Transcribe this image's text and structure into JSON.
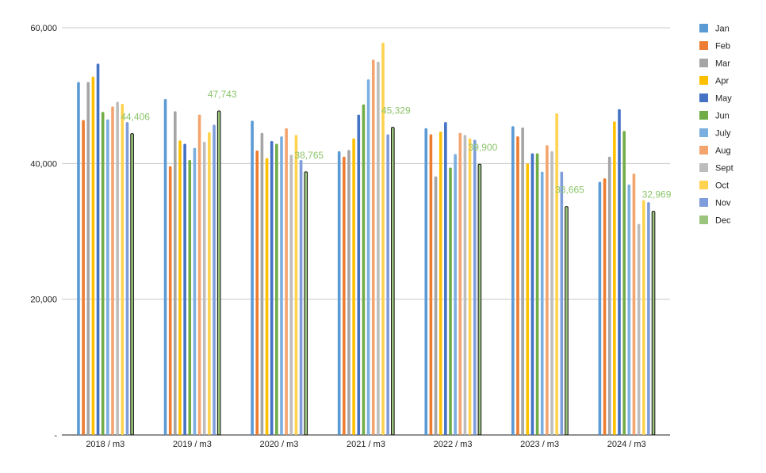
{
  "chart_data": {
    "type": "bar",
    "title": "",
    "xlabel": "",
    "ylabel": "",
    "ylim": [
      0,
      60000
    ],
    "yticks": [
      {
        "value": 0,
        "label": "-"
      },
      {
        "value": 20000,
        "label": "20,000"
      },
      {
        "value": 40000,
        "label": "40,000"
      },
      {
        "value": 60000,
        "label": "60,000"
      }
    ],
    "grid": true,
    "legend": "right",
    "categories": [
      "2018 / m3",
      "2019 /  m3",
      "2020 / m3",
      "2021 / m3",
      "2022 / m3",
      "2023 / m3",
      "2024 / m3"
    ],
    "series": [
      {
        "name": "Jan",
        "color": "#5B9BD5",
        "values": [
          52000,
          49500,
          46300,
          41800,
          45200,
          45500,
          37300
        ]
      },
      {
        "name": "Feb",
        "color": "#ED7D31",
        "values": [
          46400,
          39600,
          41900,
          41000,
          44300,
          44000,
          37800
        ]
      },
      {
        "name": "Mar",
        "color": "#A5A5A5",
        "values": [
          52000,
          47700,
          44500,
          42000,
          38100,
          45300,
          41000
        ]
      },
      {
        "name": "Apr",
        "color": "#FFC000",
        "values": [
          52800,
          43400,
          40800,
          43700,
          44700,
          40000,
          46200
        ]
      },
      {
        "name": "May",
        "color": "#4472C4",
        "values": [
          54700,
          42900,
          43300,
          47200,
          46100,
          41500,
          48000
        ]
      },
      {
        "name": "Jun",
        "color": "#70AD47",
        "values": [
          47600,
          40500,
          42900,
          48700,
          39400,
          41500,
          44800
        ]
      },
      {
        "name": "July",
        "color": "#7BAFE0",
        "values": [
          46500,
          42300,
          44000,
          52400,
          41400,
          38800,
          36900
        ]
      },
      {
        "name": "Aug",
        "color": "#F4A46E",
        "values": [
          48400,
          47200,
          45200,
          55300,
          44500,
          42700,
          38500
        ]
      },
      {
        "name": "Sept",
        "color": "#BDBDBD",
        "values": [
          49100,
          43200,
          41300,
          55000,
          44200,
          41800,
          31100
        ]
      },
      {
        "name": "Oct",
        "color": "#FFD34F",
        "values": [
          48800,
          44600,
          44200,
          57800,
          43700,
          47400,
          34600
        ]
      },
      {
        "name": "Nov",
        "color": "#7F9DDB",
        "values": [
          46100,
          45700,
          40500,
          44300,
          43500,
          38800,
          34300
        ]
      },
      {
        "name": "Dec",
        "color": "#9BC57E",
        "values": [
          44406,
          47743,
          38765,
          45329,
          39900,
          33665,
          32969
        ]
      }
    ],
    "data_labels": [
      {
        "series": "Dec",
        "category_index": 0,
        "text": "44,406"
      },
      {
        "series": "Dec",
        "category_index": 1,
        "text": "47,743"
      },
      {
        "series": "Dec",
        "category_index": 2,
        "text": "38,765"
      },
      {
        "series": "Dec",
        "category_index": 3,
        "text": "45,329"
      },
      {
        "series": "Dec",
        "category_index": 4,
        "text": "39,900"
      },
      {
        "series": "Dec",
        "category_index": 5,
        "text": "33,665"
      },
      {
        "series": "Dec",
        "category_index": 6,
        "text": "32,969"
      }
    ],
    "data_label_color": "#8CC56B",
    "axis_color": "#222222",
    "grid_color": "#C8C8C8"
  }
}
